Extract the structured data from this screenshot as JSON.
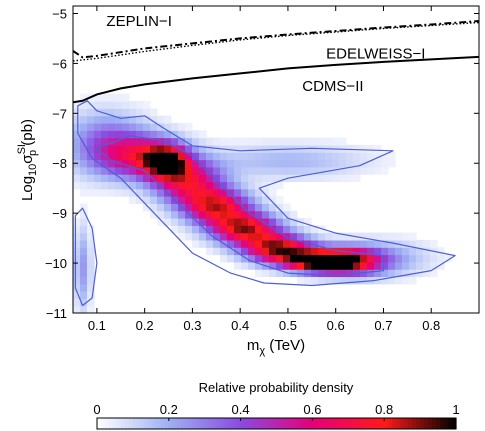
{
  "chart_data": {
    "type": "heatmap",
    "xlabel": "m",
    "xlabel_sub": "χ",
    "xlabel_unit": "(TeV)",
    "ylabel_main": "Log",
    "ylabel_sub": "10",
    "ylabel_sigma": "σ",
    "ylabel_sup": "SI",
    "ylabel_sub2": "p",
    "ylabel_unit": "(pb)",
    "xlim": [
      0.05,
      0.9
    ],
    "ylim": [
      -11,
      -4.85
    ],
    "x_ticks": [
      0.1,
      0.2,
      0.3,
      0.4,
      0.5,
      0.6,
      0.7,
      0.8
    ],
    "x_tick_labels": [
      "0.1",
      "0.2",
      "0.3",
      "0.4",
      "0.5",
      "0.6",
      "0.7",
      "0.8"
    ],
    "y_ticks": [
      -11,
      -10,
      -9,
      -8,
      -7,
      -6,
      -5
    ],
    "y_tick_labels": [
      "−11",
      "−10",
      "−9",
      "−8",
      "−7",
      "−6",
      "−5"
    ],
    "grid": false,
    "colorbar": {
      "title": "Relative probability density",
      "ticks": [
        0,
        0.2,
        0.4,
        0.6,
        0.8,
        1
      ],
      "tick_labels": [
        "0",
        "0.2",
        "0.4",
        "0.6",
        "0.8",
        "1"
      ],
      "stops": [
        "#ffffff",
        "#9fb0f4",
        "#8a4be0",
        "#e6007a",
        "#ff1a1a",
        "#000000"
      ]
    },
    "density_features": [
      {
        "x": 0.12,
        "y": -7.6,
        "sx": 0.06,
        "sy": 0.45,
        "w": 0.35
      },
      {
        "x": 0.2,
        "y": -7.85,
        "sx": 0.06,
        "sy": 0.3,
        "w": 0.55
      },
      {
        "x": 0.245,
        "y": -7.95,
        "sx": 0.03,
        "sy": 0.22,
        "w": 0.75
      },
      {
        "x": 0.29,
        "y": -8.35,
        "sx": 0.05,
        "sy": 0.3,
        "w": 0.65
      },
      {
        "x": 0.35,
        "y": -8.85,
        "sx": 0.05,
        "sy": 0.25,
        "w": 0.75
      },
      {
        "x": 0.41,
        "y": -9.3,
        "sx": 0.05,
        "sy": 0.22,
        "w": 0.8
      },
      {
        "x": 0.48,
        "y": -9.7,
        "sx": 0.05,
        "sy": 0.2,
        "w": 0.85
      },
      {
        "x": 0.565,
        "y": -9.95,
        "sx": 0.05,
        "sy": 0.15,
        "w": 1.0
      },
      {
        "x": 0.63,
        "y": -9.95,
        "sx": 0.05,
        "sy": 0.2,
        "w": 0.6
      },
      {
        "x": 0.5,
        "y": -7.95,
        "sx": 0.12,
        "sy": 0.25,
        "w": 0.18
      },
      {
        "x": 0.7,
        "y": -9.9,
        "sx": 0.07,
        "sy": 0.25,
        "w": 0.22
      },
      {
        "x": 0.07,
        "y": -10.1,
        "sx": 0.012,
        "sy": 0.6,
        "w": 0.25
      }
    ],
    "contours": [
      {
        "name": "outer-region",
        "points": [
          [
            0.06,
            -6.85
          ],
          [
            0.08,
            -6.75
          ],
          [
            0.1,
            -6.95
          ],
          [
            0.15,
            -7.1
          ],
          [
            0.2,
            -7.05
          ],
          [
            0.24,
            -7.3
          ],
          [
            0.3,
            -7.65
          ],
          [
            0.4,
            -7.75
          ],
          [
            0.55,
            -7.7
          ],
          [
            0.72,
            -7.75
          ],
          [
            0.65,
            -8.05
          ],
          [
            0.5,
            -8.3
          ],
          [
            0.44,
            -8.5
          ],
          [
            0.5,
            -9.1
          ],
          [
            0.6,
            -9.4
          ],
          [
            0.72,
            -9.6
          ],
          [
            0.85,
            -9.85
          ],
          [
            0.8,
            -10.15
          ],
          [
            0.68,
            -10.35
          ],
          [
            0.55,
            -10.45
          ],
          [
            0.45,
            -10.4
          ],
          [
            0.38,
            -10.2
          ],
          [
            0.3,
            -9.8
          ],
          [
            0.22,
            -9.0
          ],
          [
            0.15,
            -8.3
          ],
          [
            0.09,
            -7.9
          ],
          [
            0.06,
            -7.4
          ]
        ]
      },
      {
        "name": "inner-region",
        "points": [
          [
            0.1,
            -7.7
          ],
          [
            0.17,
            -7.45
          ],
          [
            0.24,
            -7.55
          ],
          [
            0.3,
            -7.85
          ],
          [
            0.36,
            -8.45
          ],
          [
            0.42,
            -9.0
          ],
          [
            0.5,
            -9.5
          ],
          [
            0.6,
            -9.75
          ],
          [
            0.7,
            -9.85
          ],
          [
            0.7,
            -10.15
          ],
          [
            0.6,
            -10.25
          ],
          [
            0.5,
            -10.2
          ],
          [
            0.42,
            -9.95
          ],
          [
            0.34,
            -9.45
          ],
          [
            0.27,
            -8.8
          ],
          [
            0.2,
            -8.15
          ],
          [
            0.13,
            -7.95
          ]
        ]
      },
      {
        "name": "lower-left-region",
        "points": [
          [
            0.055,
            -9.05
          ],
          [
            0.07,
            -8.9
          ],
          [
            0.09,
            -9.3
          ],
          [
            0.1,
            -10.0
          ],
          [
            0.09,
            -10.7
          ],
          [
            0.07,
            -10.85
          ],
          [
            0.055,
            -10.5
          ]
        ]
      }
    ],
    "limit_curves": [
      {
        "name": "ZEPLIN−I",
        "style": "dash-dot",
        "points": [
          [
            0.05,
            -5.75
          ],
          [
            0.07,
            -5.88
          ],
          [
            0.1,
            -5.85
          ],
          [
            0.2,
            -5.7
          ],
          [
            0.3,
            -5.6
          ],
          [
            0.4,
            -5.5
          ],
          [
            0.5,
            -5.42
          ],
          [
            0.6,
            -5.35
          ],
          [
            0.7,
            -5.28
          ],
          [
            0.8,
            -5.22
          ],
          [
            0.9,
            -5.15
          ]
        ]
      },
      {
        "name": "EDELWEISS−I",
        "style": "dotted",
        "points": [
          [
            0.05,
            -5.95
          ],
          [
            0.1,
            -5.9
          ],
          [
            0.2,
            -5.76
          ],
          [
            0.3,
            -5.64
          ],
          [
            0.4,
            -5.53
          ],
          [
            0.5,
            -5.44
          ],
          [
            0.6,
            -5.37
          ],
          [
            0.7,
            -5.3
          ],
          [
            0.8,
            -5.24
          ],
          [
            0.9,
            -5.18
          ]
        ]
      },
      {
        "name": "CDMS−II",
        "style": "solid",
        "points": [
          [
            0.05,
            -6.78
          ],
          [
            0.07,
            -6.75
          ],
          [
            0.1,
            -6.62
          ],
          [
            0.15,
            -6.5
          ],
          [
            0.2,
            -6.42
          ],
          [
            0.3,
            -6.3
          ],
          [
            0.4,
            -6.2
          ],
          [
            0.5,
            -6.1
          ],
          [
            0.6,
            -6.03
          ],
          [
            0.7,
            -5.97
          ],
          [
            0.8,
            -5.92
          ],
          [
            0.9,
            -5.87
          ]
        ]
      }
    ],
    "annotations": [
      {
        "text": "ZEPLIN−I",
        "x": 0.12,
        "y": -5.25
      },
      {
        "text": "EDELWEISS−I",
        "x": 0.58,
        "y": -5.9
      },
      {
        "text": "CDMS−II",
        "x": 0.53,
        "y": -6.55
      }
    ]
  }
}
